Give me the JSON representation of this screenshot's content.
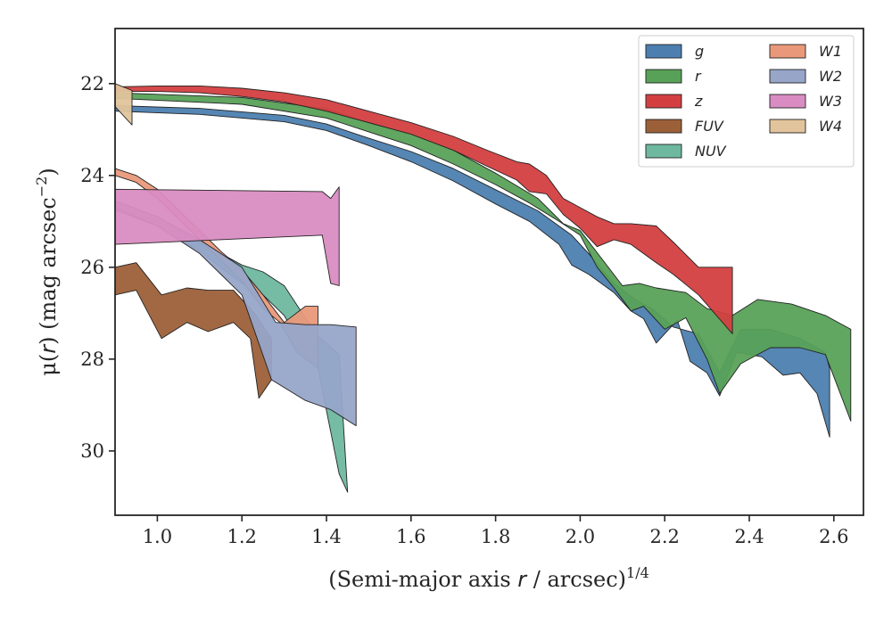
{
  "chart_data": {
    "type": "area",
    "xlabel": "(Semi-major axis r / arcsec)^1/4",
    "xlabel_parts": {
      "main": "(Semi-major axis ",
      "var": "r",
      "mid": " / arcsec)",
      "sup": "1/4"
    },
    "ylabel": "μ(r) (mag arcsec^-2)",
    "ylabel_parts": {
      "mu": "μ(",
      "var": "r",
      "mid": ") (mag arcsec",
      "sup": "−2",
      "end": ")"
    },
    "xlim": [
      0.9,
      2.67
    ],
    "ylim": [
      31.4,
      20.8
    ],
    "y_inverted": true,
    "xticks": [
      1.0,
      1.2,
      1.4,
      1.6,
      1.8,
      2.0,
      2.2,
      2.4,
      2.6
    ],
    "xtick_labels": [
      "1.0",
      "1.2",
      "1.4",
      "1.6",
      "1.8",
      "2.0",
      "2.2",
      "2.4",
      "2.6"
    ],
    "yticks": [
      22,
      24,
      26,
      28,
      30
    ],
    "ytick_labels": [
      "22",
      "24",
      "26",
      "28",
      "30"
    ],
    "grid": false,
    "legend_placement": "top-right",
    "legend_columns": 2,
    "series": [
      {
        "name": "g",
        "color": "#4c7fb0",
        "upper": [
          [
            0.9,
            22.48
          ],
          [
            1.1,
            22.54
          ],
          [
            1.3,
            22.69
          ],
          [
            1.4,
            22.88
          ],
          [
            1.5,
            23.19
          ],
          [
            1.6,
            23.48
          ],
          [
            1.7,
            23.85
          ],
          [
            1.8,
            24.31
          ],
          [
            1.9,
            24.77
          ],
          [
            1.98,
            25.3
          ],
          [
            2.02,
            25.7
          ],
          [
            2.08,
            26.35
          ],
          [
            2.13,
            26.7
          ],
          [
            2.17,
            26.9
          ],
          [
            2.22,
            27.3
          ],
          [
            2.28,
            27.45
          ],
          [
            2.33,
            28.3
          ],
          [
            2.38,
            27.35
          ],
          [
            2.45,
            27.35
          ],
          [
            2.52,
            27.55
          ],
          [
            2.58,
            27.85
          ],
          [
            2.59,
            28.2
          ]
        ],
        "lower": [
          [
            0.9,
            22.6
          ],
          [
            1.1,
            22.67
          ],
          [
            1.3,
            22.83
          ],
          [
            1.4,
            23.02
          ],
          [
            1.5,
            23.35
          ],
          [
            1.6,
            23.7
          ],
          [
            1.7,
            24.12
          ],
          [
            1.8,
            24.62
          ],
          [
            1.88,
            25.0
          ],
          [
            1.95,
            25.5
          ],
          [
            1.98,
            25.95
          ],
          [
            2.02,
            26.15
          ],
          [
            2.08,
            26.55
          ],
          [
            2.12,
            26.95
          ],
          [
            2.15,
            27.12
          ],
          [
            2.18,
            27.65
          ],
          [
            2.23,
            27.15
          ],
          [
            2.26,
            28.05
          ],
          [
            2.3,
            28.3
          ],
          [
            2.33,
            28.8
          ],
          [
            2.37,
            27.85
          ],
          [
            2.43,
            27.95
          ],
          [
            2.48,
            28.35
          ],
          [
            2.52,
            28.3
          ],
          [
            2.56,
            28.75
          ],
          [
            2.59,
            29.7
          ]
        ]
      },
      {
        "name": "r",
        "color": "#58a158",
        "upper": [
          [
            0.9,
            22.2
          ],
          [
            1.2,
            22.3
          ],
          [
            1.4,
            22.55
          ],
          [
            1.5,
            22.85
          ],
          [
            1.6,
            23.1
          ],
          [
            1.7,
            23.45
          ],
          [
            1.8,
            23.95
          ],
          [
            1.9,
            24.5
          ],
          [
            1.96,
            25.05
          ],
          [
            2.0,
            25.2
          ],
          [
            2.05,
            25.8
          ],
          [
            2.1,
            26.4
          ],
          [
            2.14,
            26.35
          ],
          [
            2.18,
            26.45
          ],
          [
            2.25,
            26.55
          ],
          [
            2.3,
            26.9
          ],
          [
            2.36,
            27.05
          ],
          [
            2.42,
            26.7
          ],
          [
            2.5,
            26.8
          ],
          [
            2.58,
            27.05
          ],
          [
            2.64,
            27.35
          ]
        ],
        "lower": [
          [
            0.9,
            22.32
          ],
          [
            1.2,
            22.45
          ],
          [
            1.4,
            22.75
          ],
          [
            1.5,
            23.05
          ],
          [
            1.6,
            23.35
          ],
          [
            1.7,
            23.75
          ],
          [
            1.8,
            24.2
          ],
          [
            1.88,
            24.6
          ],
          [
            1.95,
            25.0
          ],
          [
            2.0,
            25.3
          ],
          [
            2.04,
            26.0
          ],
          [
            2.08,
            26.45
          ],
          [
            2.12,
            26.95
          ],
          [
            2.15,
            26.85
          ],
          [
            2.2,
            27.35
          ],
          [
            2.25,
            27.1
          ],
          [
            2.3,
            28.0
          ],
          [
            2.33,
            28.75
          ],
          [
            2.38,
            28.1
          ],
          [
            2.45,
            27.75
          ],
          [
            2.52,
            27.75
          ],
          [
            2.58,
            27.9
          ],
          [
            2.64,
            29.35
          ]
        ]
      },
      {
        "name": "z",
        "color": "#d33f40",
        "upper": [
          [
            0.9,
            22.07
          ],
          [
            1.0,
            22.05
          ],
          [
            1.1,
            22.05
          ],
          [
            1.2,
            22.1
          ],
          [
            1.3,
            22.2
          ],
          [
            1.4,
            22.35
          ],
          [
            1.5,
            22.6
          ],
          [
            1.6,
            22.85
          ],
          [
            1.7,
            23.15
          ],
          [
            1.78,
            23.45
          ],
          [
            1.85,
            23.7
          ],
          [
            1.88,
            23.75
          ],
          [
            1.92,
            24.0
          ],
          [
            1.96,
            24.5
          ],
          [
            2.0,
            24.7
          ],
          [
            2.04,
            24.9
          ],
          [
            2.08,
            25.05
          ],
          [
            2.12,
            25.05
          ],
          [
            2.18,
            25.1
          ],
          [
            2.22,
            25.45
          ],
          [
            2.28,
            26.0
          ],
          [
            2.36,
            26.0
          ]
        ],
        "lower": [
          [
            0.9,
            22.17
          ],
          [
            1.0,
            22.17
          ],
          [
            1.1,
            22.2
          ],
          [
            1.2,
            22.28
          ],
          [
            1.3,
            22.4
          ],
          [
            1.4,
            22.6
          ],
          [
            1.5,
            22.85
          ],
          [
            1.6,
            23.1
          ],
          [
            1.7,
            23.45
          ],
          [
            1.78,
            23.8
          ],
          [
            1.85,
            24.1
          ],
          [
            1.88,
            24.35
          ],
          [
            1.92,
            24.4
          ],
          [
            1.96,
            24.85
          ],
          [
            2.0,
            25.15
          ],
          [
            2.04,
            25.55
          ],
          [
            2.08,
            25.4
          ],
          [
            2.12,
            25.5
          ],
          [
            2.18,
            25.9
          ],
          [
            2.22,
            26.15
          ],
          [
            2.28,
            26.6
          ],
          [
            2.36,
            27.45
          ]
        ]
      },
      {
        "name": "FUV",
        "color": "#9c6039",
        "upper": [
          [
            0.9,
            26.0
          ],
          [
            0.95,
            25.9
          ],
          [
            1.01,
            26.6
          ],
          [
            1.07,
            26.45
          ],
          [
            1.12,
            26.5
          ],
          [
            1.18,
            26.5
          ],
          [
            1.23,
            27.0
          ],
          [
            1.27,
            27.55
          ]
        ],
        "lower": [
          [
            0.9,
            26.6
          ],
          [
            0.95,
            26.5
          ],
          [
            1.01,
            27.55
          ],
          [
            1.07,
            27.2
          ],
          [
            1.12,
            27.4
          ],
          [
            1.18,
            27.2
          ],
          [
            1.22,
            27.55
          ],
          [
            1.24,
            28.85
          ],
          [
            1.27,
            28.45
          ]
        ]
      },
      {
        "name": "NUV",
        "color": "#6fb8a0",
        "upper": [
          [
            0.9,
            24.6
          ],
          [
            1.0,
            24.9
          ],
          [
            1.1,
            25.45
          ],
          [
            1.2,
            25.95
          ],
          [
            1.25,
            26.1
          ],
          [
            1.3,
            26.4
          ],
          [
            1.35,
            27.1
          ],
          [
            1.38,
            27.5
          ],
          [
            1.43,
            27.9
          ],
          [
            1.45,
            30.9
          ]
        ],
        "lower": [
          [
            0.9,
            24.75
          ],
          [
            1.0,
            25.1
          ],
          [
            1.1,
            25.65
          ],
          [
            1.2,
            26.35
          ],
          [
            1.25,
            26.6
          ],
          [
            1.3,
            27.05
          ],
          [
            1.35,
            27.85
          ],
          [
            1.38,
            28.2
          ],
          [
            1.43,
            30.5
          ],
          [
            1.45,
            30.9
          ]
        ]
      },
      {
        "name": "W1",
        "color": "#e9997a",
        "upper": [
          [
            0.9,
            23.85
          ],
          [
            0.95,
            24.0
          ],
          [
            1.0,
            24.3
          ],
          [
            1.05,
            24.75
          ],
          [
            1.1,
            25.2
          ],
          [
            1.15,
            25.65
          ],
          [
            1.2,
            26.05
          ],
          [
            1.25,
            26.6
          ],
          [
            1.3,
            27.2
          ],
          [
            1.35,
            26.85
          ],
          [
            1.38,
            26.85
          ]
        ],
        "lower": [
          [
            0.9,
            24.0
          ],
          [
            0.95,
            24.15
          ],
          [
            1.0,
            24.5
          ],
          [
            1.05,
            24.95
          ],
          [
            1.1,
            25.4
          ],
          [
            1.15,
            25.85
          ],
          [
            1.2,
            26.3
          ],
          [
            1.25,
            26.9
          ],
          [
            1.29,
            27.2
          ],
          [
            1.33,
            27.85
          ],
          [
            1.38,
            28.2
          ]
        ]
      },
      {
        "name": "W2",
        "color": "#97a5c9",
        "upper": [
          [
            0.9,
            24.55
          ],
          [
            1.0,
            24.9
          ],
          [
            1.1,
            25.4
          ],
          [
            1.2,
            26.0
          ],
          [
            1.28,
            27.2
          ],
          [
            1.35,
            27.25
          ],
          [
            1.41,
            27.25
          ],
          [
            1.47,
            27.3
          ]
        ],
        "lower": [
          [
            0.9,
            24.7
          ],
          [
            1.0,
            25.1
          ],
          [
            1.1,
            25.7
          ],
          [
            1.2,
            26.6
          ],
          [
            1.27,
            28.45
          ],
          [
            1.35,
            28.9
          ],
          [
            1.41,
            29.1
          ],
          [
            1.47,
            29.45
          ]
        ]
      },
      {
        "name": "W3",
        "color": "#d98cc1",
        "upper": [
          [
            0.9,
            24.3
          ],
          [
            1.39,
            24.35
          ],
          [
            1.41,
            24.5
          ],
          [
            1.43,
            24.25
          ]
        ],
        "lower": [
          [
            0.9,
            25.5
          ],
          [
            1.39,
            25.3
          ],
          [
            1.41,
            26.35
          ],
          [
            1.43,
            26.4
          ]
        ]
      },
      {
        "name": "W4",
        "color": "#e2c49c",
        "upper": [
          [
            0.9,
            22.0
          ],
          [
            0.94,
            22.15
          ]
        ],
        "lower": [
          [
            0.9,
            22.5
          ],
          [
            0.94,
            22.9
          ]
        ]
      }
    ]
  }
}
